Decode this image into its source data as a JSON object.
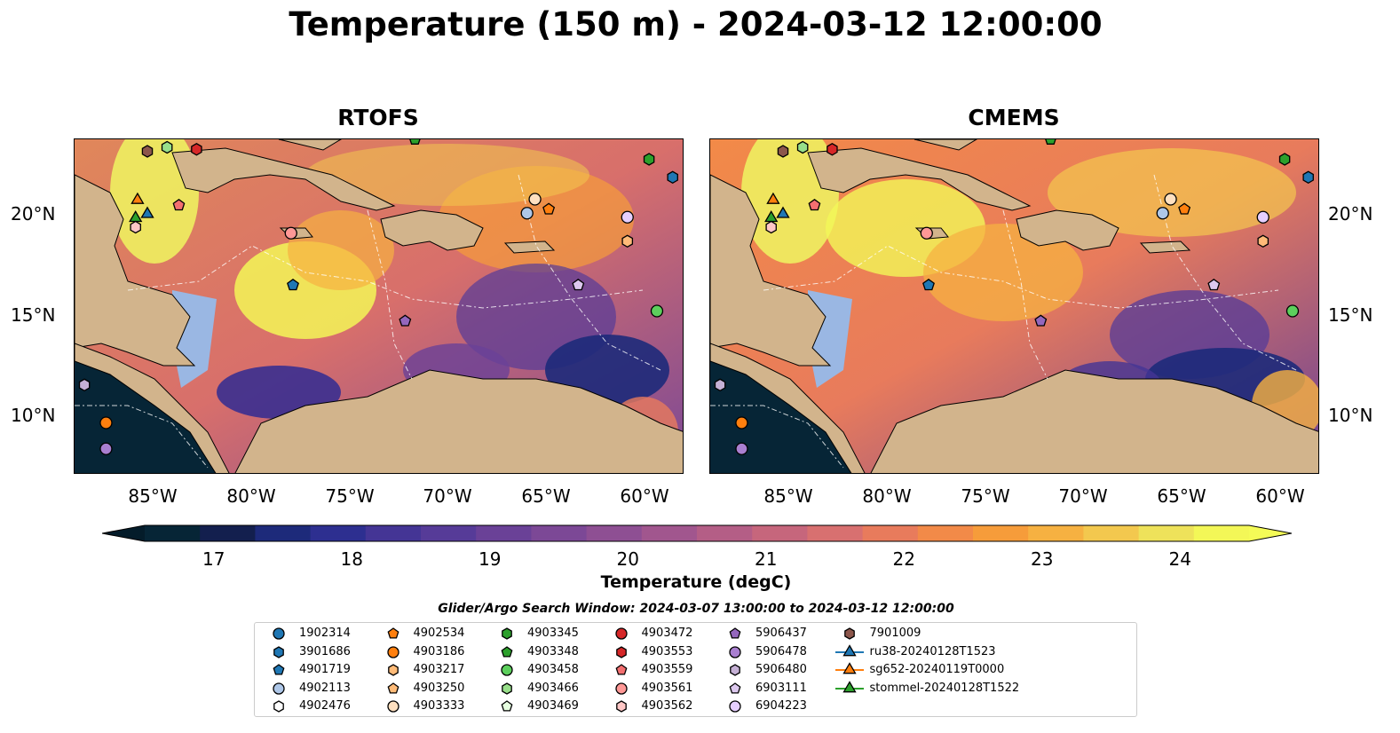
{
  "title": "Temperature (150 m) - 2024-03-12 12:00:00",
  "panels": [
    {
      "title": "RTOFS"
    },
    {
      "title": "CMEMS"
    }
  ],
  "axes": {
    "lat_ticks": [
      "20°N",
      "15°N",
      "10°N"
    ],
    "lon_ticks": [
      "85°W",
      "80°W",
      "75°W",
      "70°W",
      "65°W",
      "60°W"
    ]
  },
  "colorbar": {
    "label": "Temperature (degC)",
    "min": 16.5,
    "max": 24.5,
    "extend": "both",
    "ticks": [
      "17",
      "18",
      "19",
      "20",
      "21",
      "22",
      "23",
      "24"
    ],
    "colors": [
      "#062536",
      "#131f4e",
      "#1d2a7a",
      "#2d2f90",
      "#443595",
      "#563b98",
      "#6a4197",
      "#7c4896",
      "#8e4f93",
      "#a1568e",
      "#b45e86",
      "#c6667c",
      "#d87070",
      "#e87b5c",
      "#f28a48",
      "#f69c3a",
      "#f6b141",
      "#f3c84e",
      "#eee25a",
      "#f3f757"
    ]
  },
  "search_window": "Glider/Argo Search Window: 2024-03-07 13:00:00 to 2024-03-12 12:00:00",
  "legend": [
    {
      "label": "1902314",
      "marker": "circle",
      "color": "#1f77b4"
    },
    {
      "label": "3901686",
      "marker": "hexagon",
      "color": "#1f77b4"
    },
    {
      "label": "4901719",
      "marker": "pentagon",
      "color": "#1f77b4"
    },
    {
      "label": "4902113",
      "marker": "circle",
      "color": "#aec7e8"
    },
    {
      "label": "4902476",
      "marker": "hexagon",
      "color": "#ffffff"
    },
    {
      "label": "4902534",
      "marker": "pentagon",
      "color": "#ff7f0e"
    },
    {
      "label": "4903186",
      "marker": "circle",
      "color": "#ff7f0e"
    },
    {
      "label": "4903217",
      "marker": "hexagon",
      "color": "#ffbb78"
    },
    {
      "label": "4903250",
      "marker": "pentagon",
      "color": "#ffbb78"
    },
    {
      "label": "4903333",
      "marker": "circle",
      "color": "#ffe0c0"
    },
    {
      "label": "4903345",
      "marker": "hexagon",
      "color": "#2ca02c"
    },
    {
      "label": "4903348",
      "marker": "pentagon",
      "color": "#2ca02c"
    },
    {
      "label": "4903458",
      "marker": "circle",
      "color": "#5ccf5c"
    },
    {
      "label": "4903466",
      "marker": "hexagon",
      "color": "#98df8a"
    },
    {
      "label": "4903469",
      "marker": "pentagon",
      "color": "#e6ffe0"
    },
    {
      "label": "4903472",
      "marker": "circle",
      "color": "#d62728"
    },
    {
      "label": "4903553",
      "marker": "hexagon",
      "color": "#d62728"
    },
    {
      "label": "4903559",
      "marker": "pentagon",
      "color": "#f36f70"
    },
    {
      "label": "4903561",
      "marker": "circle",
      "color": "#ff9896"
    },
    {
      "label": "4903562",
      "marker": "hexagon",
      "color": "#ffc7c6"
    },
    {
      "label": "5906437",
      "marker": "pentagon",
      "color": "#9467bd"
    },
    {
      "label": "5906478",
      "marker": "circle",
      "color": "#a97fd0"
    },
    {
      "label": "5906480",
      "marker": "hexagon",
      "color": "#c5b0d5"
    },
    {
      "label": "6903111",
      "marker": "pentagon",
      "color": "#dcc8ee"
    },
    {
      "label": "6904223",
      "marker": "circle",
      "color": "#e6cfff"
    },
    {
      "label": "7901009",
      "marker": "hexagon",
      "color": "#8c564b"
    },
    {
      "label": "ru38-20240128T1523",
      "marker": "triangle-line",
      "color": "#1f77b4"
    },
    {
      "label": "sg652-20240119T0000",
      "marker": "triangle-line",
      "color": "#ff7f0e"
    },
    {
      "label": "stommel-20240128T1522",
      "marker": "triangle-line",
      "color": "#2ca02c"
    }
  ],
  "platform_positions": [
    {
      "id": "7901009",
      "lon": -85.3,
      "lat": 23.2
    },
    {
      "id": "4903466",
      "lon": -84.3,
      "lat": 23.4
    },
    {
      "id": "4903553",
      "lon": -82.8,
      "lat": 23.3
    },
    {
      "id": "4903348",
      "lon": -71.7,
      "lat": 23.8
    },
    {
      "id": "4903345",
      "lon": -59.8,
      "lat": 22.8
    },
    {
      "id": "3901686",
      "lon": -58.6,
      "lat": 21.9
    },
    {
      "id": "sg652-20240119T0000",
      "lon": -85.8,
      "lat": 20.8
    },
    {
      "id": "4903559",
      "lon": -83.7,
      "lat": 20.5
    },
    {
      "id": "ru38-20240128T1523",
      "lon": -85.3,
      "lat": 20.1
    },
    {
      "id": "stommel-20240128T1522",
      "lon": -85.9,
      "lat": 19.9
    },
    {
      "id": "4903562",
      "lon": -85.9,
      "lat": 19.4
    },
    {
      "id": "4903561",
      "lon": -78.0,
      "lat": 19.1
    },
    {
      "id": "4903333",
      "lon": -65.6,
      "lat": 20.8
    },
    {
      "id": "4902534",
      "lon": -64.9,
      "lat": 20.3
    },
    {
      "id": "4902113",
      "lon": -66.0,
      "lat": 20.1
    },
    {
      "id": "6904223",
      "lon": -60.9,
      "lat": 19.9
    },
    {
      "id": "4903217",
      "lon": -60.9,
      "lat": 18.7
    },
    {
      "id": "4901719",
      "lon": -77.9,
      "lat": 16.5
    },
    {
      "id": "6903111",
      "lon": -63.4,
      "lat": 16.5
    },
    {
      "id": "5906437",
      "lon": -72.2,
      "lat": 14.7
    },
    {
      "id": "4903458",
      "lon": -59.4,
      "lat": 15.2
    },
    {
      "id": "5906480",
      "lon": -88.5,
      "lat": 11.5
    },
    {
      "id": "4903186",
      "lon": -87.4,
      "lat": 9.6
    },
    {
      "id": "5906478",
      "lon": -87.4,
      "lat": 8.3
    }
  ]
}
